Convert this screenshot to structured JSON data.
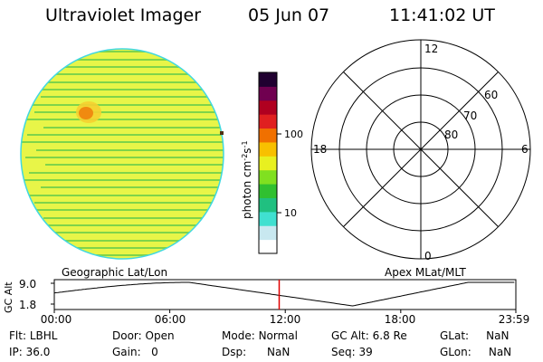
{
  "header": {
    "title": "Ultraviolet Imager",
    "date": "05 Jun 07",
    "time": "11:41:02 UT"
  },
  "colorbar": {
    "unit_label": "photon cm",
    "unit_exp1": "-2",
    "unit_mid": "s",
    "unit_exp2": "-1",
    "ticks": [
      "100",
      "10"
    ],
    "colors": [
      "#ffffff",
      "#c8e8f0",
      "#40e0d0",
      "#20c080",
      "#30c030",
      "#80e020",
      "#e8f020",
      "#f8c000",
      "#f07000",
      "#e02020",
      "#b00020",
      "#700050",
      "#200030"
    ]
  },
  "image_panel": {
    "label": "Geographic Lat/Lon",
    "base_color": "#e8f548",
    "stripe_color": "#7fd44a",
    "hotspot_color": "#f08a10",
    "rim_color": "#40d8e0"
  },
  "polar_panel": {
    "label": "Apex MLat/MLT",
    "mlt_labels": {
      "top": "12",
      "right": "6",
      "bottom": "0",
      "left": "18"
    },
    "lat_labels": [
      "60",
      "70",
      "80"
    ]
  },
  "alt_plot": {
    "ylabel": "GC Alt",
    "yticks": [
      "9.0",
      "1.8"
    ],
    "xticks": [
      "00:00",
      "06:00",
      "12:00",
      "18:00",
      "23:59"
    ],
    "current_time_color": "#e00000"
  },
  "info": {
    "flt_label": "Flt:",
    "flt_value": "LBHL",
    "ip_label": "IP:",
    "ip_value": "36.0",
    "door_label": "Door:",
    "door_value": "Open",
    "gain_label": "Gain:",
    "gain_value": "0",
    "mode_label": "Mode:",
    "mode_value": "Normal",
    "dsp_label": "Dsp:",
    "dsp_value": "NaN",
    "gcalt_label": "GC Alt:",
    "gcalt_value": "6.8 Re",
    "seq_label": "Seq:",
    "seq_value": "39",
    "glat_label": "GLat:",
    "glat_value": "NaN",
    "glon_label": "GLon:",
    "glon_value": "NaN"
  }
}
